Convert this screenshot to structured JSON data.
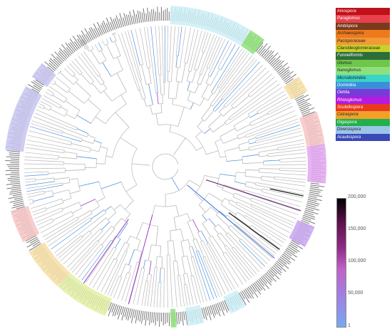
{
  "legend": {
    "items": [
      {
        "label": "Innospora",
        "color": "#c0101a"
      },
      {
        "label": "Paraglomus",
        "color": "#e8414c"
      },
      {
        "label": "Ambispora",
        "color": "#7a3a1c"
      },
      {
        "label": "Archaeospora",
        "color": "#ee7a1c"
      },
      {
        "label": "Pacisporaceae",
        "color": "#f29a36"
      },
      {
        "label": "Claroideoglomeraceae",
        "color": "#c8d02a"
      },
      {
        "label": "Funneliformis",
        "color": "#2c6e3a"
      },
      {
        "label": "Glomus",
        "color": "#6fc64a"
      },
      {
        "label": "Nanoglomus",
        "color": "#8ee07a"
      },
      {
        "label": "Microdominikia",
        "color": "#38d4c8"
      },
      {
        "label": "Dominikia",
        "color": "#3a90d8"
      },
      {
        "label": "Oehlia",
        "color": "#7a3ad8"
      },
      {
        "label": "Rhizoglomus",
        "color": "#b41ae0"
      },
      {
        "label": "Scutellospora",
        "color": "#e83a1c"
      },
      {
        "label": "Cetraspora",
        "color": "#f2a02a"
      },
      {
        "label": "Gigaspora",
        "color": "#22b04a"
      },
      {
        "label": "Diversispora",
        "color": "#9cc4e8"
      },
      {
        "label": "Acaulospora",
        "color": "#3a48b8"
      }
    ]
  },
  "scale": {
    "ticks": [
      "200,000",
      "150,000",
      "100,000",
      "50,000",
      "1"
    ]
  },
  "tree": {
    "sectors": [
      {
        "start": 272,
        "end": 302,
        "color": "#cdeef6"
      },
      {
        "start": 302,
        "end": 308,
        "color": "#8ee07a"
      },
      {
        "start": 326,
        "end": 332,
        "color": "#f7dfa4"
      },
      {
        "start": 340,
        "end": 352,
        "color": "#f7c4c4"
      },
      {
        "start": 352,
        "end": 366,
        "color": "#e3a6f0"
      },
      {
        "start": 22,
        "end": 30,
        "color": "#c8a6f0"
      },
      {
        "start": 60,
        "end": 66,
        "color": "#cdeef6"
      },
      {
        "start": 76,
        "end": 82,
        "color": "#cdeef6"
      },
      {
        "start": 86,
        "end": 88,
        "color": "#8ee07a"
      },
      {
        "start": 112,
        "end": 132,
        "color": "#e3f0a4"
      },
      {
        "start": 132,
        "end": 148,
        "color": "#f7dfa4"
      },
      {
        "start": 152,
        "end": 164,
        "color": "#f7c4c4"
      },
      {
        "start": 186,
        "end": 210,
        "color": "#c8c4f0"
      },
      {
        "start": 214,
        "end": 220,
        "color": "#c8c4f0"
      }
    ]
  }
}
